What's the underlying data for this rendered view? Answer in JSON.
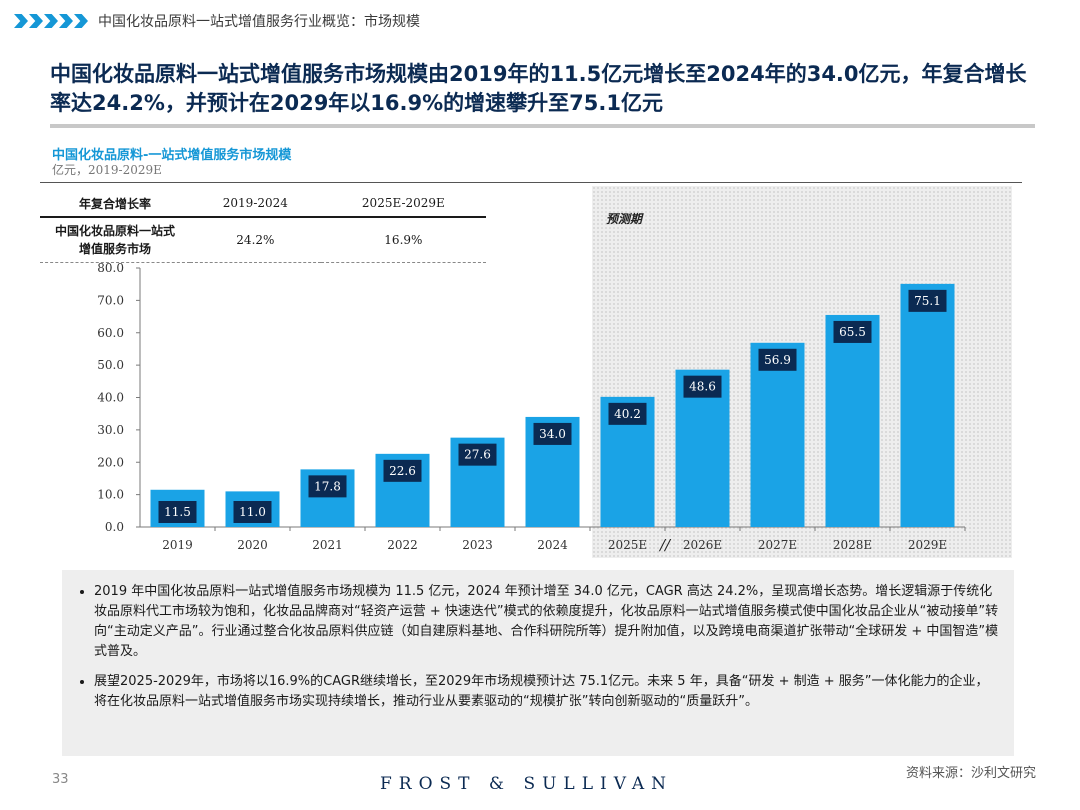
{
  "header": {
    "section": "中国化妆品原料一站式增值服务行业概览：市场规模"
  },
  "title": "中国化妆品原料一站式增值服务市场规模由2019年的11.5亿元增长至2024年的34.0亿元，年复合增长率达24.2%，并预计在2029年以16.9%的增速攀升至75.1亿元",
  "chart_title": "中国化妆品原料-一站式增值服务市场规模",
  "chart_subtitle": "亿元，2019-2029E",
  "forecast_label": "预测期",
  "cagr_table": {
    "headers": [
      "年复合增长率",
      "2019-2024",
      "2025E-2029E"
    ],
    "row_label": "中国化妆品原料一站式增值服务市场",
    "values": [
      "24.2%",
      "16.9%"
    ]
  },
  "chart_data": {
    "type": "bar",
    "title": "中国化妆品原料-一站式增值服务市场规模",
    "ylabel": "亿元",
    "categories": [
      "2019",
      "2020",
      "2021",
      "2022",
      "2023",
      "2024",
      "2025E",
      "2026E",
      "2027E",
      "2028E",
      "2029E"
    ],
    "values": [
      11.5,
      11.0,
      17.8,
      22.6,
      27.6,
      34.0,
      40.2,
      48.6,
      56.9,
      65.5,
      75.1
    ],
    "value_labels": [
      "11.5",
      "11.0",
      "17.8",
      "22.6",
      "27.6",
      "34.0",
      "40.2",
      "48.6",
      "56.9",
      "65.5",
      "75.1"
    ],
    "ylim": [
      0,
      80
    ],
    "yticks": [
      "0.0",
      "10.0",
      "20.0",
      "30.0",
      "40.0",
      "50.0",
      "60.0",
      "70.0",
      "80.0"
    ],
    "axis_break_marker": "//",
    "forecast_start": "2025E",
    "colors": {
      "bar": "#1aa3e6",
      "label_bg": "#0b2a52",
      "label_text": "#ffffff"
    }
  },
  "notes": [
    "2019 年中国化妆品原料一站式增值服务市场规模为 11.5 亿元，2024 年预计增至 34.0 亿元，CAGR 高达 24.2%，呈现高增长态势。增长逻辑源于传统化妆品原料代工市场较为饱和，化妆品品牌商对“轻资产运营 + 快速迭代”模式的依赖度提升，化妆品原料一站式增值服务模式使中国化妆品企业从“被动接单”转向“主动定义产品”。行业通过整合化妆品原料供应链（如自建原料基地、合作科研院所等）提升附加值，以及跨境电商渠道扩张带动“全球研发 + 中国智造”模式普及。",
    "展望2025-2029年，市场将以16.9%的CAGR继续增长，至2029年市场规模预计达 75.1亿元。未来 5 年，具备“研发 + 制造 + 服务”一体化能力的企业，将在化妆品原料一站式增值服务市场实现持续增长，推动行业从要素驱动的“规模扩张”转向创新驱动的“质量跃升”。"
  ],
  "source": "资料来源：沙利文研究",
  "page_number": "33",
  "brand": "FROST & SULLIVAN"
}
